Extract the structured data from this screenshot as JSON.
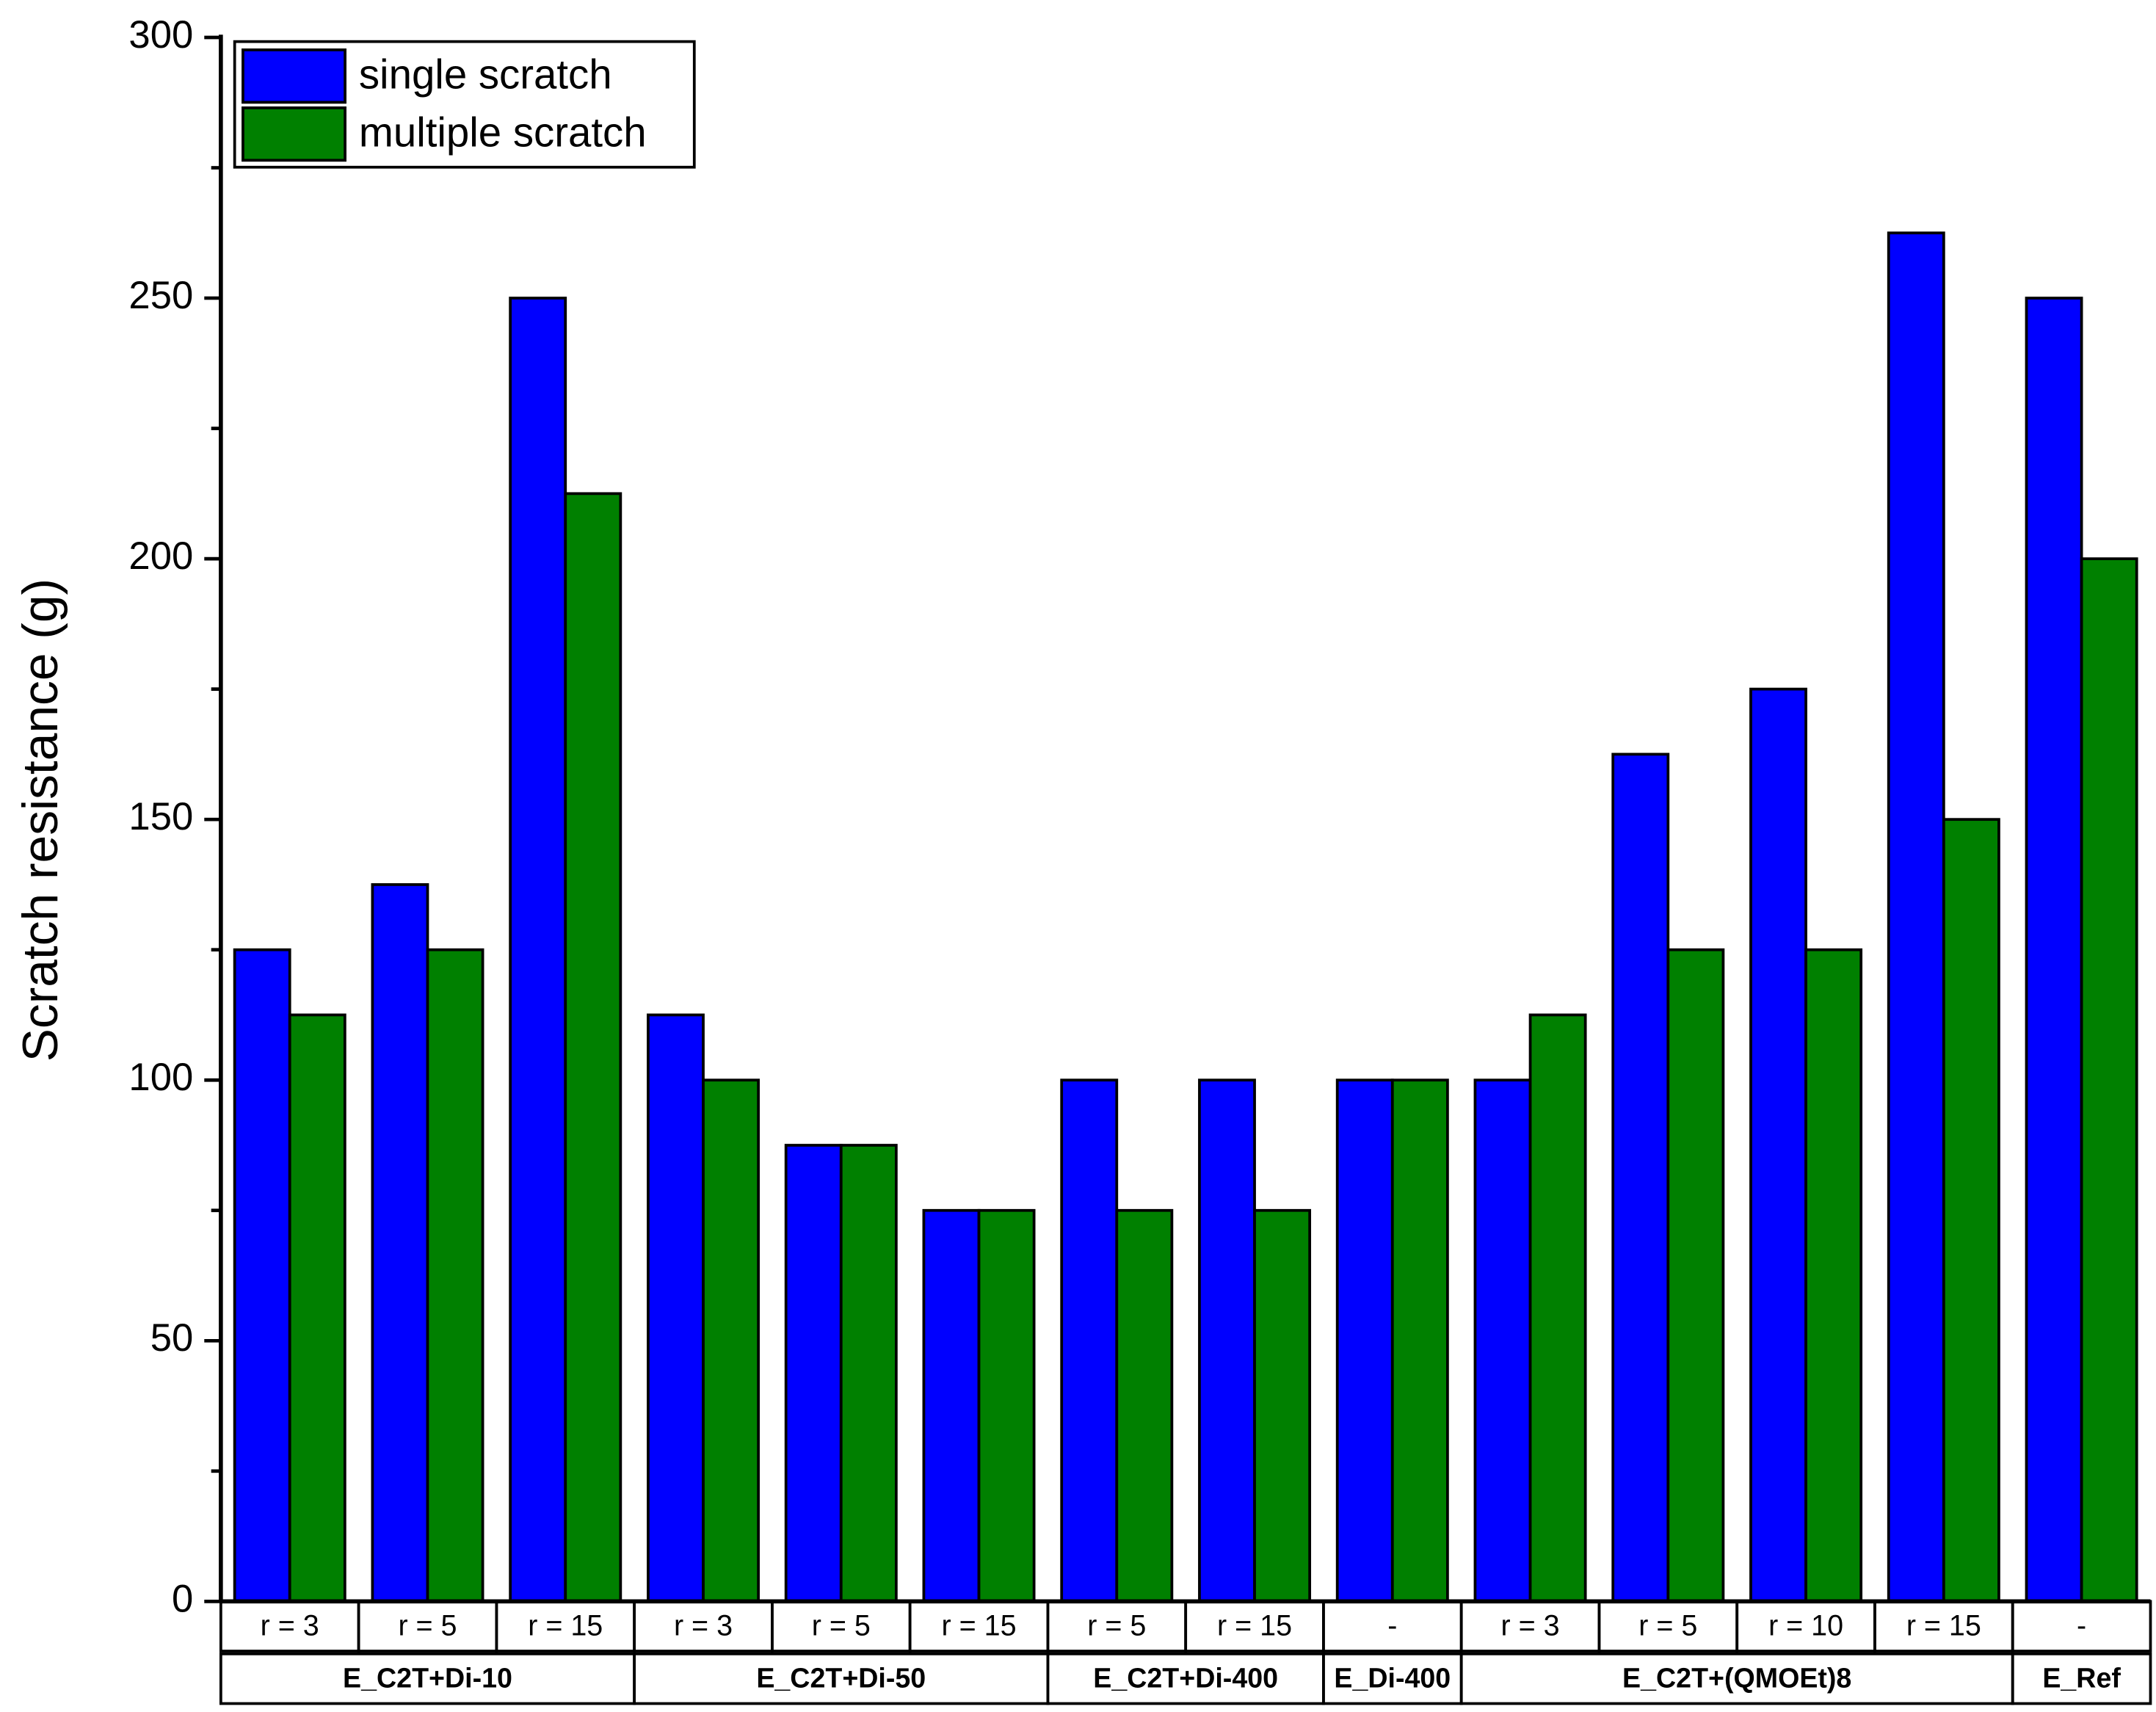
{
  "chart_data": {
    "type": "bar",
    "y_label": "Scratch resistance (g)",
    "groups": [
      {
        "name": "E_C2T+Di-10",
        "categories": [
          "r = 3",
          "r = 5",
          "r = 15"
        ]
      },
      {
        "name": "E_C2T+Di-50",
        "categories": [
          "r = 3",
          "r = 5",
          "r = 15"
        ]
      },
      {
        "name": "E_C2T+Di-400",
        "categories": [
          "r = 5",
          "r = 15"
        ]
      },
      {
        "name": "E_Di-400",
        "categories": [
          "-"
        ]
      },
      {
        "name": "E_C2T+(QMOEt)8",
        "categories": [
          "r = 3",
          "r = 5",
          "r = 10",
          "r = 15"
        ]
      },
      {
        "name": "E_Ref",
        "categories": [
          "-"
        ]
      }
    ],
    "series": [
      {
        "name": "single scratch",
        "color": "#0000ff",
        "values": [
          125,
          137.5,
          250,
          112.5,
          87.5,
          75,
          100,
          100,
          100,
          100,
          162.5,
          175,
          262.5,
          250
        ]
      },
      {
        "name": "multiple scratch",
        "color": "#008000",
        "values": [
          112.5,
          125,
          212.5,
          100,
          87.5,
          75,
          75,
          75,
          100,
          112.5,
          125,
          125,
          150,
          200
        ]
      }
    ],
    "ylim": [
      0,
      300
    ],
    "yticks": [
      0,
      50,
      100,
      150,
      200,
      250,
      300
    ],
    "legend": "upper left"
  }
}
